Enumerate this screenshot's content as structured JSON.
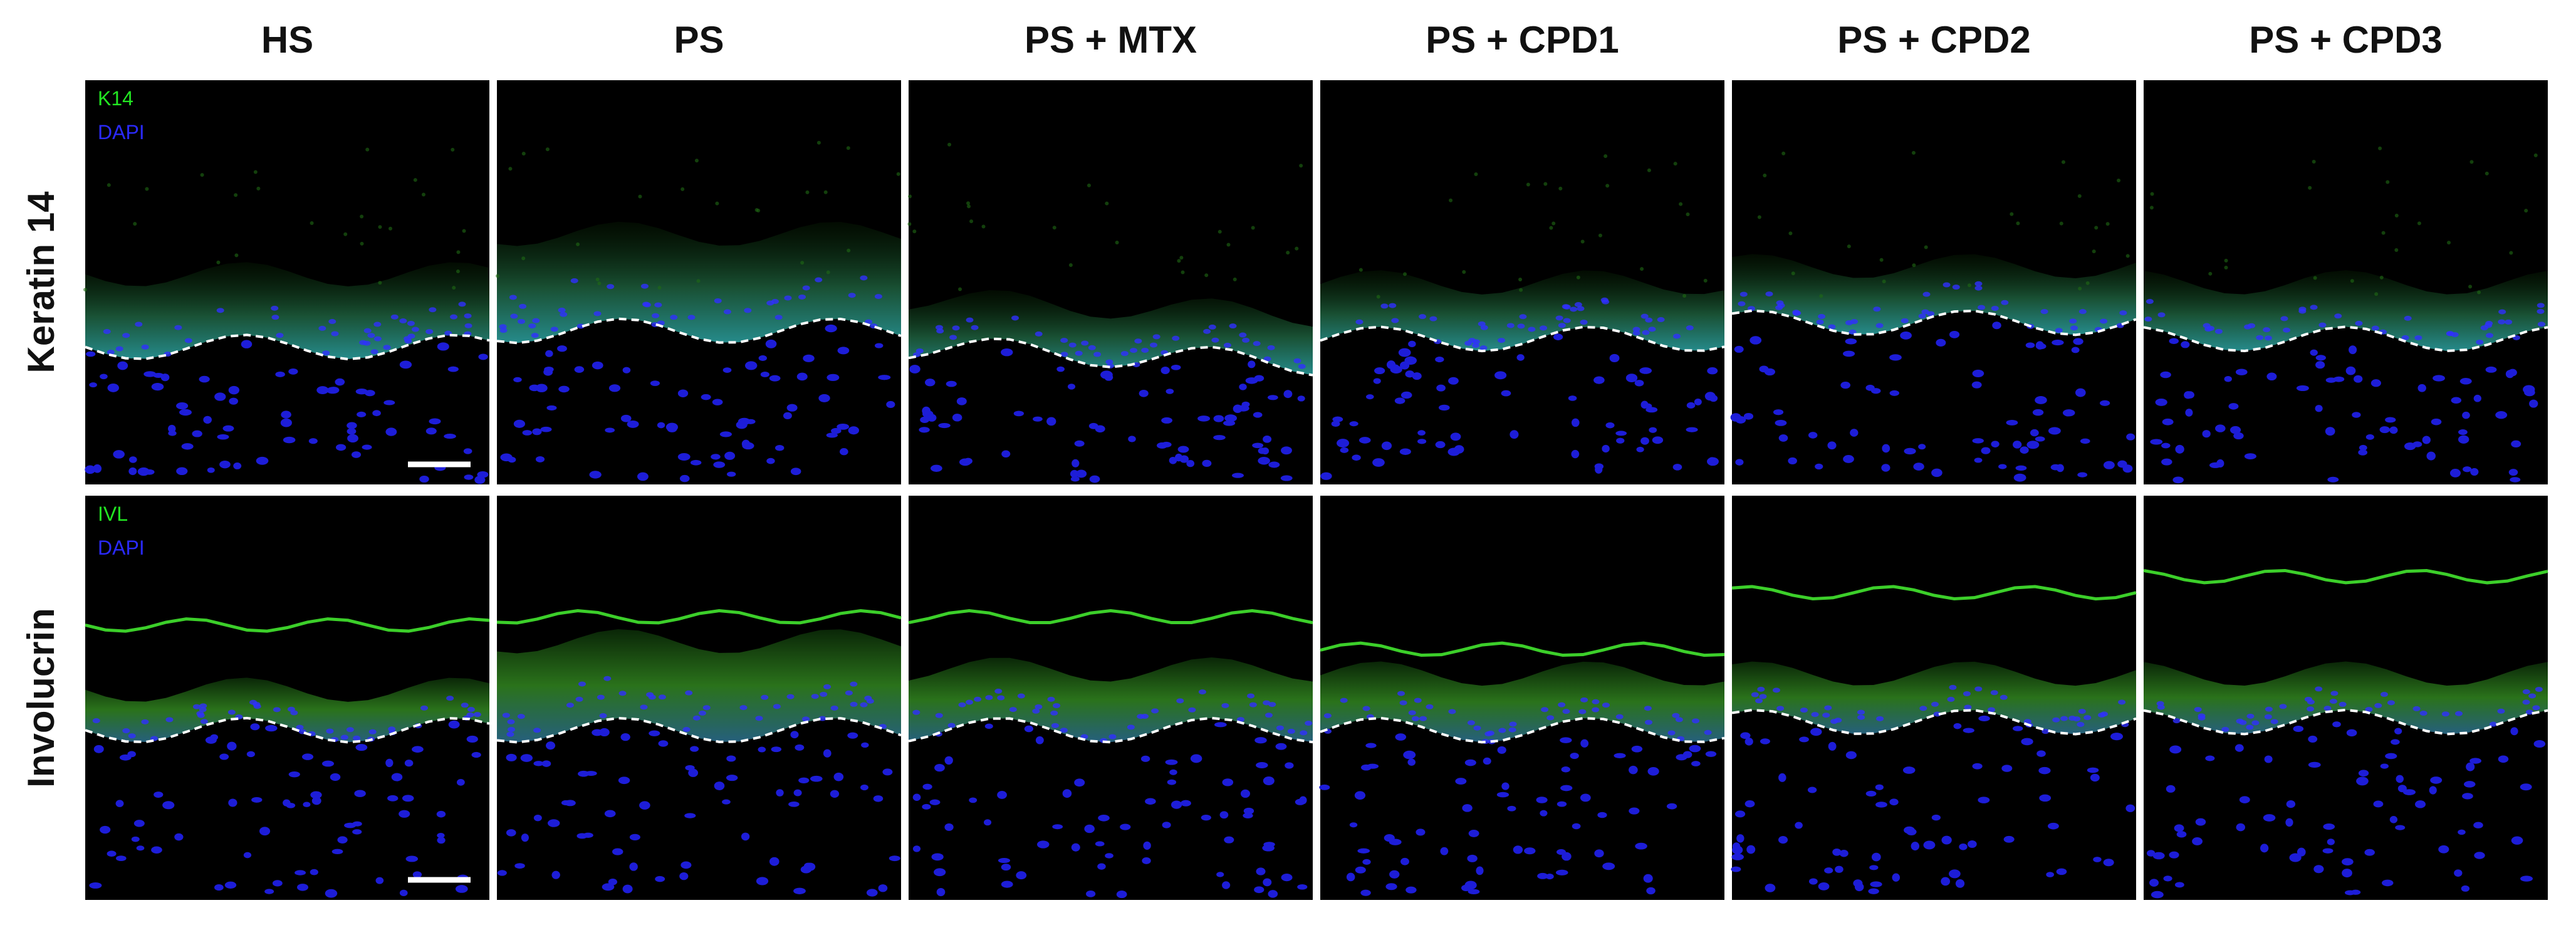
{
  "columns": [
    "HS",
    "PS",
    "PS + MTX",
    "PS + CPD1",
    "PS + CPD2",
    "PS + CPD3"
  ],
  "rows": [
    {
      "label": "Keratin 14",
      "channels": [
        "K14",
        "DAPI"
      ]
    },
    {
      "label": "Involucrin",
      "channels": [
        "IVL",
        "DAPI"
      ]
    }
  ]
}
